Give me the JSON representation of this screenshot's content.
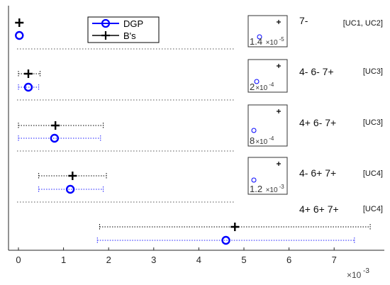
{
  "chart_data": {
    "type": "scatter",
    "xlim": [
      -0.2,
      8.0
    ],
    "x_ticks": [
      "0",
      "1",
      "2",
      "3",
      "4",
      "5",
      "6",
      "7"
    ],
    "x_multiplier": {
      "base": "×10",
      "exponent": "-3"
    },
    "legend": {
      "position": "top-left",
      "entries": [
        {
          "name": "DGP",
          "color": "#0000ff",
          "marker": "circle"
        },
        {
          "name": "B's",
          "color": "#000000",
          "marker": "plus"
        }
      ]
    },
    "groups": [
      {
        "label": "7-",
        "group": "[UC1, UC2]",
        "bs": {
          "value": 0.02,
          "low": null,
          "high": null
        },
        "dgp": {
          "value": 0.02,
          "low": null,
          "high": null
        },
        "inset": {
          "mantissa": "1.4",
          "exponent": "-5"
        }
      },
      {
        "label": "4- 6- 7+",
        "group": "[UC3]",
        "bs": {
          "value": 0.22,
          "low": 0.0,
          "high": 0.48
        },
        "dgp": {
          "value": 0.22,
          "low": 0.0,
          "high": 0.45
        },
        "inset": {
          "mantissa": "2",
          "exponent": "-4"
        }
      },
      {
        "label": "4+ 6- 7+",
        "group": "[UC3]",
        "bs": {
          "value": 0.82,
          "low": 0.0,
          "high": 1.88
        },
        "dgp": {
          "value": 0.8,
          "low": 0.0,
          "high": 1.82
        },
        "inset": {
          "mantissa": "8",
          "exponent": "-4"
        }
      },
      {
        "label": "4- 6+ 7+",
        "group": "[UC4]",
        "bs": {
          "value": 1.2,
          "low": 0.45,
          "high": 1.95
        },
        "dgp": {
          "value": 1.15,
          "low": 0.45,
          "high": 1.88
        },
        "inset": {
          "mantissa": "1.2",
          "exponent": "-3"
        }
      },
      {
        "label": "4+ 6+ 7+",
        "group": "[UC4]",
        "bs": {
          "value": 4.8,
          "low": 1.8,
          "high": 7.8
        },
        "dgp": {
          "value": 4.6,
          "low": 1.75,
          "high": 7.45
        },
        "inset": null
      }
    ]
  }
}
